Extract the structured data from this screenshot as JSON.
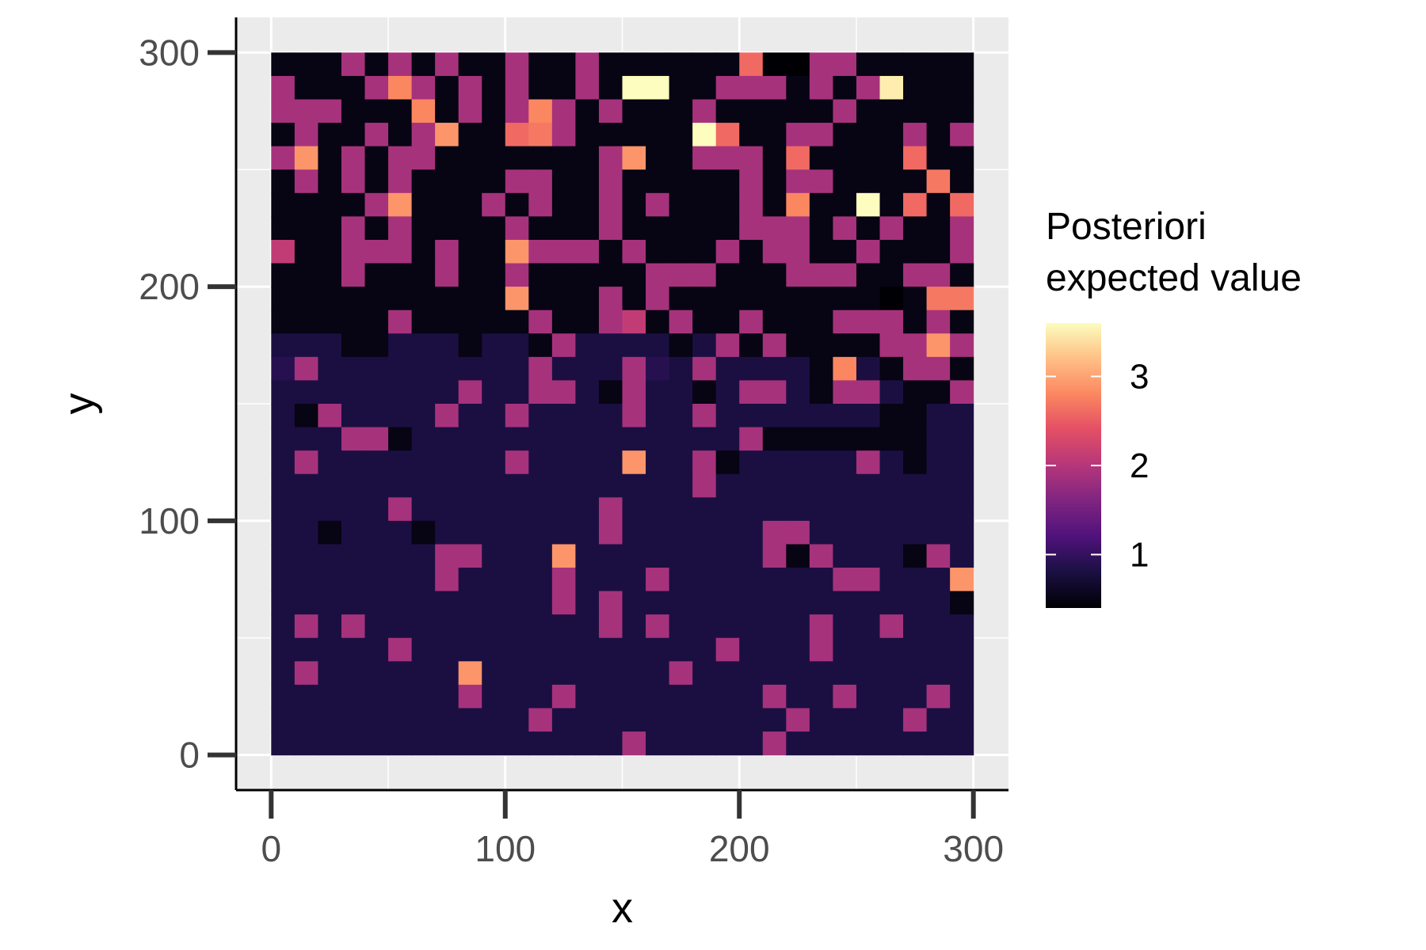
{
  "chart_data": {
    "type": "heatmap",
    "xlabel": "x",
    "ylabel": "y",
    "x_ticks": [
      0,
      100,
      200,
      300
    ],
    "y_ticks": [
      0,
      100,
      200,
      300
    ],
    "xlim": [
      -15,
      315
    ],
    "ylim": [
      -15,
      315
    ],
    "grid": true,
    "cell_size": 10,
    "n_cols": 30,
    "n_rows": 30,
    "legend": {
      "title_line1": "Posteriori",
      "title_line2": "expected value",
      "ticks": [
        1,
        2,
        3
      ],
      "min": 0.4,
      "max": 3.6,
      "placement": "right",
      "colormap": "magma"
    },
    "row_order": "top-to-bottom (y from 295 down to 5), columns x from 5 to 295",
    "values": [
      [
        0.5,
        0.5,
        0.5,
        1.9,
        0.5,
        1.9,
        0.5,
        1.9,
        0.5,
        0.5,
        1.9,
        0.5,
        0.5,
        1.9,
        0.5,
        0.5,
        0.5,
        0.5,
        0.5,
        0.5,
        2.6,
        0.4,
        0.4,
        1.9,
        1.9,
        0.5,
        0.5,
        0.5,
        0.5,
        0.5
      ],
      [
        1.9,
        0.5,
        0.5,
        0.5,
        1.9,
        2.8,
        1.9,
        0.5,
        1.9,
        0.5,
        1.9,
        0.5,
        0.5,
        1.9,
        0.5,
        3.6,
        3.6,
        0.5,
        0.5,
        1.9,
        1.9,
        1.9,
        0.5,
        1.9,
        0.5,
        1.9,
        3.5,
        0.5,
        0.5,
        0.5
      ],
      [
        1.9,
        1.9,
        1.9,
        0.5,
        0.5,
        0.5,
        2.8,
        0.5,
        1.9,
        0.5,
        1.9,
        2.8,
        1.9,
        0.5,
        1.9,
        0.5,
        0.5,
        0.5,
        1.9,
        0.5,
        0.5,
        0.5,
        0.5,
        0.5,
        1.9,
        0.5,
        0.5,
        0.5,
        0.5,
        0.5
      ],
      [
        0.5,
        1.9,
        0.5,
        0.5,
        1.9,
        0.5,
        1.9,
        2.9,
        0.5,
        0.5,
        2.6,
        2.7,
        1.9,
        0.5,
        0.5,
        0.5,
        0.5,
        0.5,
        3.6,
        2.6,
        0.5,
        0.5,
        1.9,
        1.9,
        0.5,
        0.5,
        0.5,
        1.9,
        0.5,
        1.9
      ],
      [
        1.9,
        2.9,
        0.5,
        1.9,
        0.5,
        1.9,
        1.9,
        0.5,
        0.5,
        0.5,
        0.5,
        0.5,
        0.5,
        0.5,
        1.9,
        2.9,
        0.5,
        0.5,
        1.9,
        1.9,
        1.9,
        0.5,
        2.6,
        0.5,
        0.5,
        0.5,
        0.5,
        2.6,
        0.5,
        0.5
      ],
      [
        0.5,
        1.9,
        0.5,
        1.9,
        0.5,
        1.9,
        0.5,
        0.5,
        0.5,
        0.5,
        1.9,
        1.9,
        0.5,
        0.5,
        1.9,
        0.5,
        0.5,
        0.5,
        0.5,
        0.5,
        1.9,
        0.5,
        1.9,
        1.9,
        0.5,
        0.5,
        0.5,
        0.5,
        2.7,
        0.5
      ],
      [
        0.5,
        0.5,
        0.5,
        0.5,
        1.9,
        2.9,
        0.5,
        0.5,
        0.5,
        1.9,
        0.5,
        1.9,
        0.5,
        0.5,
        1.9,
        0.5,
        1.9,
        0.5,
        0.5,
        0.5,
        1.9,
        0.5,
        2.8,
        0.5,
        0.5,
        3.6,
        0.5,
        2.6,
        0.5,
        2.6
      ],
      [
        0.5,
        0.5,
        0.5,
        1.9,
        0.5,
        1.9,
        0.5,
        0.5,
        0.5,
        0.5,
        1.9,
        0.5,
        0.5,
        0.5,
        1.9,
        0.5,
        0.5,
        0.5,
        0.5,
        0.5,
        1.9,
        1.9,
        1.9,
        0.5,
        1.9,
        0.5,
        1.9,
        0.5,
        0.5,
        1.9
      ],
      [
        2.1,
        0.5,
        0.5,
        1.9,
        1.9,
        1.9,
        0.5,
        1.9,
        0.5,
        0.5,
        2.9,
        1.9,
        1.9,
        1.9,
        0.5,
        1.9,
        0.5,
        0.5,
        0.5,
        1.9,
        0.5,
        1.9,
        1.9,
        0.5,
        0.5,
        1.9,
        0.5,
        0.5,
        0.5,
        1.9
      ],
      [
        0.5,
        0.5,
        0.5,
        1.9,
        0.5,
        0.5,
        0.5,
        1.9,
        0.5,
        0.5,
        1.9,
        0.5,
        0.5,
        0.5,
        0.5,
        0.5,
        1.9,
        1.9,
        1.9,
        0.5,
        0.5,
        0.5,
        1.9,
        1.9,
        1.9,
        0.5,
        0.5,
        1.9,
        1.9,
        0.5
      ],
      [
        0.5,
        0.5,
        0.5,
        0.5,
        0.5,
        0.5,
        0.5,
        0.5,
        0.5,
        0.5,
        2.9,
        0.5,
        0.5,
        0.5,
        1.9,
        0.5,
        1.9,
        0.5,
        0.5,
        0.5,
        0.5,
        0.5,
        0.5,
        0.5,
        0.5,
        0.5,
        0.4,
        0.5,
        2.7,
        2.7
      ],
      [
        0.5,
        0.5,
        0.5,
        0.5,
        0.5,
        1.9,
        0.5,
        0.5,
        0.5,
        0.5,
        0.5,
        1.9,
        0.5,
        0.5,
        1.9,
        2.1,
        0.5,
        1.9,
        0.5,
        0.5,
        1.9,
        0.5,
        0.5,
        0.5,
        1.9,
        1.9,
        1.9,
        0.5,
        1.9,
        0.5
      ],
      [
        0.8,
        0.8,
        0.8,
        0.5,
        0.5,
        0.8,
        0.8,
        0.8,
        0.5,
        0.8,
        0.8,
        0.5,
        1.9,
        0.8,
        0.8,
        0.8,
        0.8,
        0.5,
        0.8,
        1.9,
        0.5,
        1.9,
        0.5,
        0.5,
        0.5,
        0.5,
        1.9,
        1.9,
        2.9,
        1.9
      ],
      [
        0.9,
        1.9,
        0.8,
        0.8,
        0.8,
        0.8,
        0.8,
        0.8,
        0.8,
        0.8,
        0.8,
        1.9,
        0.8,
        0.8,
        0.8,
        1.9,
        0.9,
        0.8,
        1.9,
        0.8,
        0.8,
        0.8,
        0.8,
        0.5,
        2.8,
        0.8,
        0.5,
        1.9,
        1.9,
        0.5
      ],
      [
        0.8,
        0.8,
        0.8,
        0.8,
        0.8,
        0.8,
        0.8,
        0.8,
        1.9,
        0.8,
        0.8,
        1.9,
        1.9,
        0.8,
        0.5,
        1.9,
        0.8,
        0.8,
        0.5,
        0.8,
        1.9,
        1.9,
        0.8,
        0.5,
        1.9,
        1.9,
        0.8,
        0.5,
        0.5,
        1.9
      ],
      [
        0.8,
        0.5,
        1.9,
        0.8,
        0.8,
        0.8,
        0.8,
        1.9,
        0.8,
        0.8,
        1.9,
        0.8,
        0.8,
        0.8,
        0.8,
        1.9,
        0.8,
        0.8,
        1.9,
        0.8,
        0.8,
        0.8,
        0.8,
        0.8,
        0.8,
        0.8,
        0.5,
        0.5,
        0.8,
        0.8
      ],
      [
        0.8,
        0.8,
        0.8,
        1.9,
        1.9,
        0.5,
        0.8,
        0.8,
        0.8,
        0.8,
        0.8,
        0.8,
        0.8,
        0.8,
        0.8,
        0.8,
        0.8,
        0.8,
        0.8,
        0.8,
        1.9,
        0.5,
        0.5,
        0.5,
        0.5,
        0.5,
        0.5,
        0.5,
        0.8,
        0.8
      ],
      [
        0.8,
        1.9,
        0.8,
        0.8,
        0.8,
        0.8,
        0.8,
        0.8,
        0.8,
        0.8,
        1.9,
        0.8,
        0.8,
        0.8,
        0.8,
        2.9,
        0.8,
        0.8,
        1.9,
        0.5,
        0.8,
        0.8,
        0.8,
        0.8,
        0.8,
        1.9,
        0.8,
        0.5,
        0.8,
        0.8
      ],
      [
        0.8,
        0.8,
        0.8,
        0.8,
        0.8,
        0.8,
        0.8,
        0.8,
        0.8,
        0.8,
        0.8,
        0.8,
        0.8,
        0.8,
        0.8,
        0.8,
        0.8,
        0.8,
        1.9,
        0.8,
        0.8,
        0.8,
        0.8,
        0.8,
        0.8,
        0.8,
        0.8,
        0.8,
        0.8,
        0.8
      ],
      [
        0.8,
        0.8,
        0.8,
        0.8,
        0.8,
        1.9,
        0.8,
        0.8,
        0.8,
        0.8,
        0.8,
        0.8,
        0.8,
        0.8,
        1.9,
        0.8,
        0.8,
        0.8,
        0.8,
        0.8,
        0.8,
        0.8,
        0.8,
        0.8,
        0.8,
        0.8,
        0.8,
        0.8,
        0.8,
        0.8
      ],
      [
        0.8,
        0.8,
        0.5,
        0.8,
        0.8,
        0.8,
        0.5,
        0.8,
        0.8,
        0.8,
        0.8,
        0.8,
        0.8,
        0.8,
        1.9,
        0.8,
        0.8,
        0.8,
        0.8,
        0.8,
        0.8,
        1.9,
        1.9,
        0.8,
        0.8,
        0.8,
        0.8,
        0.8,
        0.8,
        0.8
      ],
      [
        0.8,
        0.8,
        0.8,
        0.8,
        0.8,
        0.8,
        0.8,
        1.9,
        1.9,
        0.8,
        0.8,
        0.8,
        2.9,
        0.8,
        0.8,
        0.8,
        0.8,
        0.8,
        0.8,
        0.8,
        0.8,
        1.9,
        0.5,
        1.9,
        0.8,
        0.8,
        0.8,
        0.5,
        1.9,
        0.8
      ],
      [
        0.8,
        0.8,
        0.8,
        0.8,
        0.8,
        0.8,
        0.8,
        1.9,
        0.8,
        0.8,
        0.8,
        0.8,
        1.9,
        0.8,
        0.8,
        0.8,
        1.9,
        0.8,
        0.8,
        0.8,
        0.8,
        0.8,
        0.8,
        0.8,
        1.9,
        1.9,
        0.8,
        0.8,
        0.8,
        2.9
      ],
      [
        0.8,
        0.8,
        0.8,
        0.8,
        0.8,
        0.8,
        0.8,
        0.8,
        0.8,
        0.8,
        0.8,
        0.8,
        1.9,
        0.8,
        1.9,
        0.8,
        0.8,
        0.8,
        0.8,
        0.8,
        0.8,
        0.8,
        0.8,
        0.8,
        0.8,
        0.8,
        0.8,
        0.8,
        0.8,
        0.5
      ],
      [
        0.8,
        1.9,
        0.8,
        1.9,
        0.8,
        0.8,
        0.8,
        0.8,
        0.8,
        0.8,
        0.8,
        0.8,
        0.8,
        0.8,
        1.9,
        0.8,
        1.9,
        0.8,
        0.8,
        0.8,
        0.8,
        0.8,
        0.8,
        1.9,
        0.8,
        0.8,
        1.9,
        0.8,
        0.8,
        0.8
      ],
      [
        0.8,
        0.8,
        0.8,
        0.8,
        0.8,
        1.9,
        0.8,
        0.8,
        0.8,
        0.8,
        0.8,
        0.8,
        0.8,
        0.8,
        0.8,
        0.8,
        0.8,
        0.8,
        0.8,
        1.9,
        0.8,
        0.8,
        0.8,
        1.9,
        0.8,
        0.8,
        0.8,
        0.8,
        0.8,
        0.8
      ],
      [
        0.8,
        1.9,
        0.8,
        0.8,
        0.8,
        0.8,
        0.8,
        0.8,
        2.9,
        0.8,
        0.8,
        0.8,
        0.8,
        0.8,
        0.8,
        0.8,
        0.8,
        1.9,
        0.8,
        0.8,
        0.8,
        0.8,
        0.8,
        0.8,
        0.8,
        0.8,
        0.8,
        0.8,
        0.8,
        0.8
      ],
      [
        0.8,
        0.8,
        0.8,
        0.8,
        0.8,
        0.8,
        0.8,
        0.8,
        1.9,
        0.8,
        0.8,
        0.8,
        1.9,
        0.8,
        0.8,
        0.8,
        0.8,
        0.8,
        0.8,
        0.8,
        0.8,
        1.9,
        0.8,
        0.8,
        1.9,
        0.8,
        0.8,
        0.8,
        1.9,
        0.8
      ],
      [
        0.8,
        0.8,
        0.8,
        0.8,
        0.8,
        0.8,
        0.8,
        0.8,
        0.8,
        0.8,
        0.8,
        1.9,
        0.8,
        0.8,
        0.8,
        0.8,
        0.8,
        0.8,
        0.8,
        0.8,
        0.8,
        0.8,
        1.9,
        0.8,
        0.8,
        0.8,
        0.8,
        1.9,
        0.8,
        0.8
      ],
      [
        0.8,
        0.8,
        0.8,
        0.8,
        0.8,
        0.8,
        0.8,
        0.8,
        0.8,
        0.8,
        0.8,
        0.8,
        0.8,
        0.8,
        0.8,
        1.9,
        0.8,
        0.8,
        0.8,
        0.8,
        0.8,
        1.9,
        0.8,
        0.8,
        0.8,
        0.8,
        0.8,
        0.8,
        0.8,
        0.8
      ]
    ]
  }
}
